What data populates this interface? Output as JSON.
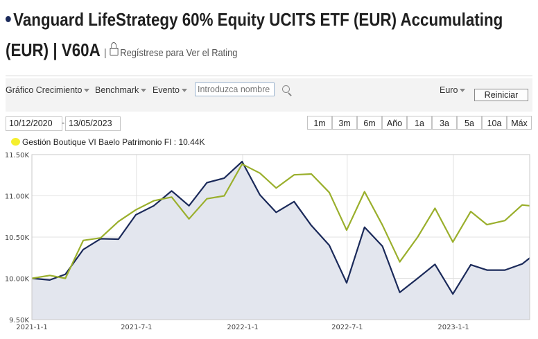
{
  "header": {
    "title_line1": "Vanguard LifeStrategy 60% Equity UCITS ETF (EUR) Accumulating",
    "title_line2": "(EUR) | V60A",
    "separator": "|",
    "rating_link": "Regístrese para Ver el Rating",
    "lock_icon": "lock-icon"
  },
  "toolbar": {
    "growth_chart": "Gráfico Crecimiento",
    "benchmark": "Benchmark",
    "event": "Evento",
    "search_placeholder": "Introduzca nombre",
    "search_icon": "search-icon",
    "currency": "Euro",
    "reset": "Reiniciar"
  },
  "date_range": {
    "start": "10/12/2020",
    "separator": "-",
    "end": "13/05/2023",
    "buttons": [
      "1m",
      "3m",
      "6m",
      "Año",
      "1a",
      "3a",
      "5a",
      "10a",
      "Máx"
    ]
  },
  "legend": {
    "label": "Gestión Boutique VI Baelo Patrimonio FI : 10.44K",
    "swatch_color": "#f5ef2e"
  },
  "chart_data": {
    "type": "line",
    "title": "",
    "xlabel": "",
    "ylabel": "",
    "ylim": [
      9500,
      11500
    ],
    "y_ticks": [
      "9.50K",
      "10.00K",
      "10.50K",
      "11.00K",
      "11.50K"
    ],
    "y_tick_values": [
      9500,
      10000,
      10500,
      11000,
      11500
    ],
    "x_ticks": [
      "2021-1-1",
      "2021-7-1",
      "2022-1-1",
      "2022-7-1",
      "2023-1-1"
    ],
    "x_tick_dates": [
      "2021-01-01",
      "2021-07-01",
      "2022-01-01",
      "2022-07-01",
      "2023-01-01"
    ],
    "xlim": [
      "2021-01-01",
      "2023-05-13"
    ],
    "grid": true,
    "series": [
      {
        "color": "#1b2a5a",
        "fill": "#e3e6ee",
        "points": [
          [
            "2021-01-01",
            10000
          ],
          [
            "2021-02-01",
            9980
          ],
          [
            "2021-02-28",
            10050
          ],
          [
            "2021-03-31",
            10350
          ],
          [
            "2021-04-30",
            10480
          ],
          [
            "2021-05-31",
            10475
          ],
          [
            "2021-06-30",
            10770
          ],
          [
            "2021-07-31",
            10880
          ],
          [
            "2021-08-31",
            11060
          ],
          [
            "2021-09-30",
            10880
          ],
          [
            "2021-10-31",
            11160
          ],
          [
            "2021-11-30",
            11215
          ],
          [
            "2021-12-31",
            11415
          ],
          [
            "2022-01-31",
            11010
          ],
          [
            "2022-02-28",
            10800
          ],
          [
            "2022-03-31",
            10930
          ],
          [
            "2022-04-30",
            10640
          ],
          [
            "2022-05-31",
            10400
          ],
          [
            "2022-06-30",
            9945
          ],
          [
            "2022-07-31",
            10620
          ],
          [
            "2022-08-31",
            10390
          ],
          [
            "2022-09-30",
            9830
          ],
          [
            "2022-10-31",
            10000
          ],
          [
            "2022-11-30",
            10170
          ],
          [
            "2022-12-31",
            9810
          ],
          [
            "2023-01-31",
            10165
          ],
          [
            "2023-02-28",
            10100
          ],
          [
            "2023-03-31",
            10100
          ],
          [
            "2023-04-30",
            10175
          ],
          [
            "2023-05-13",
            10245
          ]
        ]
      },
      {
        "name": "Gestión Boutique VI Baelo Patrimonio FI",
        "color": "#9aaf2c",
        "points": [
          [
            "2021-01-01",
            10000
          ],
          [
            "2021-02-01",
            10035
          ],
          [
            "2021-02-28",
            10000
          ],
          [
            "2021-03-31",
            10460
          ],
          [
            "2021-04-30",
            10490
          ],
          [
            "2021-05-31",
            10690
          ],
          [
            "2021-06-30",
            10830
          ],
          [
            "2021-07-31",
            10940
          ],
          [
            "2021-08-31",
            10985
          ],
          [
            "2021-09-30",
            10720
          ],
          [
            "2021-10-31",
            10965
          ],
          [
            "2021-11-30",
            11000
          ],
          [
            "2021-12-31",
            11385
          ],
          [
            "2022-01-31",
            11275
          ],
          [
            "2022-02-28",
            11095
          ],
          [
            "2022-03-31",
            11255
          ],
          [
            "2022-04-30",
            11265
          ],
          [
            "2022-05-31",
            11040
          ],
          [
            "2022-06-30",
            10585
          ],
          [
            "2022-07-31",
            11050
          ],
          [
            "2022-08-31",
            10645
          ],
          [
            "2022-09-30",
            10200
          ],
          [
            "2022-10-31",
            10500
          ],
          [
            "2022-11-30",
            10850
          ],
          [
            "2022-12-31",
            10440
          ],
          [
            "2023-01-31",
            10810
          ],
          [
            "2023-02-28",
            10650
          ],
          [
            "2023-03-31",
            10700
          ],
          [
            "2023-04-30",
            10890
          ],
          [
            "2023-05-13",
            10880
          ]
        ]
      }
    ]
  }
}
